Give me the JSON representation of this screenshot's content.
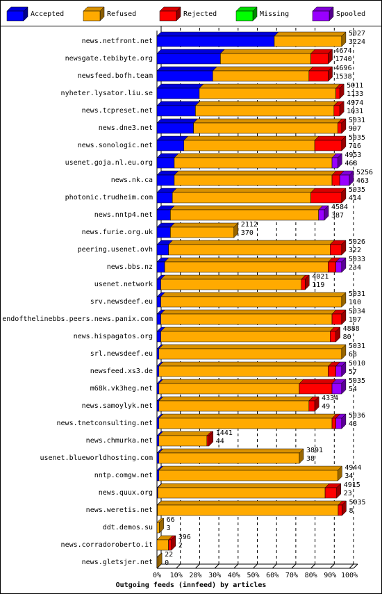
{
  "chart_data": {
    "type": "stacked-bar-3d",
    "xlabel": "Outgoing feeds (innfeed) by articles",
    "categories": [
      "news.netfront.net",
      "newsgate.tebibyte.org",
      "newsfeed.bofh.team",
      "nyheter.lysator.liu.se",
      "news.tcpreset.net",
      "news.dne3.net",
      "news.sonologic.net",
      "usenet.goja.nl.eu.org",
      "news.nk.ca",
      "photonic.trudheim.com",
      "news.nntp4.net",
      "news.furie.org.uk",
      "peering.usenet.ovh",
      "news.bbs.nz",
      "usenet.network",
      "srv.newsdeef.eu",
      "endofthelinebbs.peers.news.panix.com",
      "news.hispagatos.org",
      "srl.newsdeef.eu",
      "newsfeed.xs3.de",
      "m68k.vk3heg.net",
      "news.samoylyk.net",
      "news.tnetconsulting.net",
      "news.chmurka.net",
      "usenet.blueworldhosting.com",
      "nntp.comgw.net",
      "news.quux.org",
      "news.weretis.net",
      "ddt.demos.su",
      "news.corradoroberto.it",
      "news.gletsjer.net"
    ],
    "offered": [
      5027,
      4674,
      4696,
      5011,
      4974,
      5031,
      5035,
      4953,
      5256,
      5035,
      4584,
      2112,
      5026,
      5033,
      4021,
      5031,
      5034,
      4888,
      5031,
      5010,
      5035,
      4334,
      5036,
      1441,
      3891,
      4944,
      4915,
      5035,
      66,
      396,
      22
    ],
    "accepted": [
      3224,
      1740,
      1538,
      1133,
      1031,
      997,
      716,
      468,
      463,
      414,
      387,
      370,
      322,
      234,
      119,
      110,
      107,
      80,
      68,
      57,
      54,
      49,
      48,
      44,
      38,
      34,
      23,
      8,
      3,
      2,
      0
    ],
    "series": [
      {
        "name": "Accepted",
        "color": "#0000ff",
        "values": [
          61,
          33,
          29,
          22,
          20,
          19,
          14,
          9,
          9,
          8,
          7,
          7,
          6,
          4,
          2,
          2,
          2,
          2,
          1,
          1,
          1,
          1,
          1,
          1,
          1,
          1,
          0.4,
          0.2,
          0,
          0,
          0
        ]
      },
      {
        "name": "Refused",
        "color": "#ffaa00",
        "values": [
          35,
          47,
          50,
          71,
          72,
          75,
          68,
          82,
          82,
          72,
          77,
          33,
          84,
          85,
          73,
          94,
          89,
          88,
          95,
          88,
          73,
          78,
          90,
          25,
          73,
          93,
          87,
          94,
          1.3,
          6,
          0.4
        ]
      },
      {
        "name": "Rejected",
        "color": "#ff0000",
        "values": [
          0,
          9,
          10,
          2,
          3,
          2,
          14,
          0,
          4,
          16,
          0,
          0,
          6,
          4,
          2,
          0,
          5,
          3,
          0,
          4,
          17,
          3,
          2,
          1,
          0,
          0,
          6,
          2,
          0,
          1.5,
          0
        ]
      },
      {
        "name": "Missing",
        "color": "#00ff00",
        "values": [
          0,
          0,
          0,
          0,
          0,
          0,
          0,
          0,
          0,
          0,
          0,
          0,
          0,
          0,
          0,
          0,
          0,
          0,
          0,
          0,
          0,
          0,
          0,
          0,
          0,
          0,
          0,
          0,
          0,
          0,
          0
        ]
      },
      {
        "name": "Spooled",
        "color": "#9900ff",
        "values": [
          0,
          0,
          0,
          0,
          0,
          0,
          0,
          3,
          5,
          0,
          3,
          0,
          0,
          3,
          0,
          0,
          0,
          0,
          0,
          3,
          5,
          0,
          3,
          0,
          0,
          0,
          0,
          0,
          0,
          0,
          0
        ]
      }
    ],
    "xlim": [
      0,
      100
    ],
    "xticks": [
      {
        "value": 0,
        "label": "0%"
      },
      {
        "value": 10,
        "label": "10%"
      },
      {
        "value": 20,
        "label": "20%"
      },
      {
        "value": 30,
        "label": "30%"
      },
      {
        "value": 40,
        "label": "40%"
      },
      {
        "value": 50,
        "label": "50%"
      },
      {
        "value": 60,
        "label": "60%"
      },
      {
        "value": 70,
        "label": "70%"
      },
      {
        "value": 80,
        "label": "80%"
      },
      {
        "value": 90,
        "label": "90%"
      },
      {
        "value": 100,
        "label": "100%"
      }
    ],
    "grid": true
  }
}
